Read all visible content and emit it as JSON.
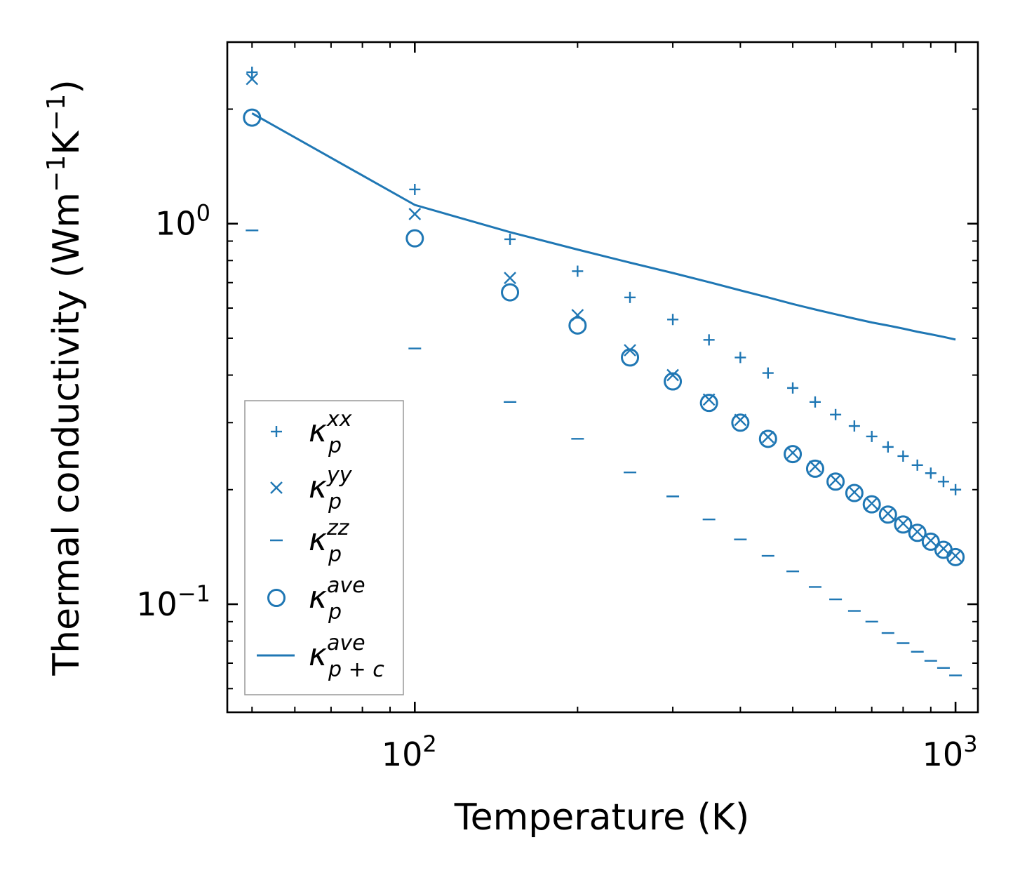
{
  "chart_data": {
    "type": "scatter",
    "xscale": "log",
    "yscale": "log",
    "xlabel": "Temperature (K)",
    "ylabel": "Thermal conductivity (Wm",
    "ylabel_sup1": "−1",
    "ylabel_mid": "K",
    "ylabel_sup2": "−1",
    "ylabel_end": ")",
    "xlim": [
      45,
      1100
    ],
    "ylim": [
      0.052,
      3.0
    ],
    "xticks": [
      {
        "value": 100,
        "base": "10",
        "exp": "2"
      },
      {
        "value": 1000,
        "base": "10",
        "exp": "3"
      }
    ],
    "yticks": [
      {
        "value": 0.1,
        "base": "10",
        "exp": "−1"
      },
      {
        "value": 1,
        "base": "10",
        "exp": "0"
      }
    ],
    "color": "#1f77b4",
    "x": [
      50,
      100,
      150,
      200,
      250,
      300,
      350,
      400,
      450,
      500,
      550,
      600,
      650,
      700,
      750,
      800,
      850,
      900,
      950,
      1000
    ],
    "series": [
      {
        "name": "κ_p^xx",
        "sym": "κ",
        "sub": "p",
        "sup": "xx",
        "marker": "plus",
        "values": [
          2.5,
          1.23,
          0.91,
          0.75,
          0.64,
          0.56,
          0.495,
          0.445,
          0.405,
          0.37,
          0.34,
          0.315,
          0.294,
          0.276,
          0.259,
          0.245,
          0.232,
          0.221,
          0.21,
          0.2
        ]
      },
      {
        "name": "κ_p^yy",
        "sym": "κ",
        "sub": "p",
        "sup": "yy",
        "marker": "x",
        "values": [
          2.4,
          1.06,
          0.72,
          0.575,
          0.465,
          0.4,
          0.345,
          0.305,
          0.275,
          0.25,
          0.23,
          0.212,
          0.197,
          0.184,
          0.173,
          0.163,
          0.155,
          0.147,
          0.14,
          0.134
        ]
      },
      {
        "name": "κ_p^zz",
        "sym": "κ",
        "sub": "p",
        "sup": "zz",
        "marker": "minus",
        "values": [
          0.96,
          0.47,
          0.34,
          0.272,
          0.222,
          0.192,
          0.167,
          0.148,
          0.134,
          0.122,
          0.111,
          0.103,
          0.096,
          0.09,
          0.084,
          0.079,
          0.075,
          0.071,
          0.068,
          0.065
        ]
      },
      {
        "name": "κ_p^ave",
        "sym": "κ",
        "sub": "p",
        "sup": "ave",
        "marker": "circle",
        "values": [
          1.9,
          0.915,
          0.66,
          0.54,
          0.445,
          0.385,
          0.338,
          0.3,
          0.272,
          0.248,
          0.227,
          0.21,
          0.196,
          0.183,
          0.172,
          0.162,
          0.154,
          0.146,
          0.139,
          0.133
        ]
      },
      {
        "name": "κ_p+c^ave",
        "sym": "κ",
        "sub": "p + c",
        "sup": "ave",
        "marker": "line",
        "values": [
          1.95,
          1.12,
          0.95,
          0.855,
          0.79,
          0.742,
          0.702,
          0.668,
          0.64,
          0.615,
          0.595,
          0.578,
          0.563,
          0.55,
          0.54,
          0.53,
          0.52,
          0.512,
          0.504,
          0.496
        ]
      }
    ],
    "legend": {
      "position": "lower-left"
    }
  }
}
